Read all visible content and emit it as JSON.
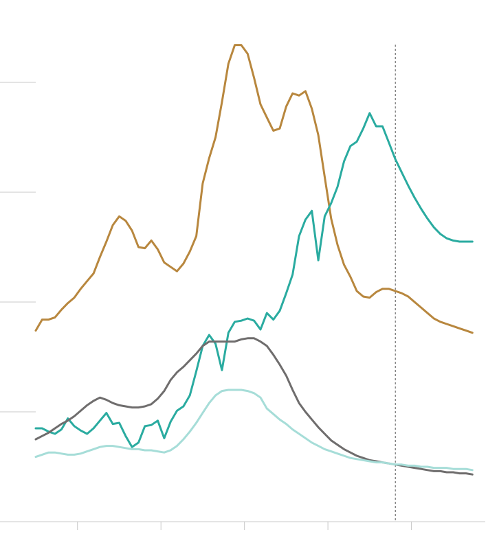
{
  "chart_data": {
    "type": "line",
    "title": "",
    "xlabel": "",
    "ylabel": "",
    "xlim": [
      0,
      140
    ],
    "ylim": [
      0,
      4
    ],
    "y_gridlines": [
      1,
      2,
      3,
      4
    ],
    "x_ticks": [
      13,
      39,
      65,
      91,
      117
    ],
    "reference_line_x": 112,
    "grid": true,
    "series": [
      {
        "color": "#B8873E",
        "x": [
          0,
          2,
          4,
          6,
          8,
          10,
          12,
          14,
          16,
          18,
          20,
          22,
          24,
          26,
          28,
          30,
          32,
          34,
          36,
          38,
          40,
          42,
          44,
          46,
          48,
          50,
          52,
          54,
          56,
          58,
          60,
          62,
          64,
          66,
          68,
          70,
          72,
          74,
          76,
          78,
          80,
          82,
          84,
          86,
          88,
          90,
          92,
          94,
          96,
          98,
          100,
          102,
          104,
          106,
          108,
          110,
          112,
          114,
          116,
          118,
          120,
          122,
          124,
          126,
          128,
          130,
          132,
          134,
          136
        ],
        "values": [
          1.74,
          1.84,
          1.84,
          1.86,
          1.93,
          1.99,
          2.04,
          2.12,
          2.19,
          2.26,
          2.41,
          2.55,
          2.7,
          2.78,
          2.74,
          2.65,
          2.5,
          2.49,
          2.56,
          2.48,
          2.36,
          2.32,
          2.28,
          2.35,
          2.46,
          2.6,
          3.08,
          3.31,
          3.5,
          3.82,
          4.17,
          4.34,
          4.34,
          4.26,
          4.04,
          3.8,
          3.68,
          3.56,
          3.58,
          3.78,
          3.9,
          3.88,
          3.92,
          3.76,
          3.52,
          3.14,
          2.76,
          2.52,
          2.34,
          2.23,
          2.1,
          2.05,
          2.04,
          2.09,
          2.12,
          2.12,
          2.1,
          2.08,
          2.05,
          2.0,
          1.95,
          1.9,
          1.85,
          1.82,
          1.8,
          1.78,
          1.76,
          1.74,
          1.72
        ]
      },
      {
        "color": "#2AABA0",
        "x": [
          0,
          2,
          4,
          6,
          8,
          10,
          12,
          14,
          16,
          18,
          20,
          22,
          24,
          26,
          28,
          30,
          32,
          34,
          36,
          38,
          40,
          42,
          44,
          46,
          48,
          50,
          52,
          54,
          56,
          58,
          60,
          62,
          64,
          66,
          68,
          70,
          72,
          74,
          76,
          78,
          80,
          82,
          84,
          86,
          88,
          90,
          92,
          94,
          96,
          98,
          100,
          102,
          104,
          106,
          108,
          110,
          112,
          114,
          116,
          118,
          120,
          122,
          124,
          126,
          128,
          130,
          132,
          134,
          136
        ],
        "values": [
          0.85,
          0.85,
          0.82,
          0.8,
          0.84,
          0.94,
          0.87,
          0.83,
          0.8,
          0.85,
          0.92,
          0.99,
          0.89,
          0.9,
          0.78,
          0.68,
          0.72,
          0.87,
          0.88,
          0.92,
          0.76,
          0.91,
          1.01,
          1.05,
          1.15,
          1.37,
          1.6,
          1.7,
          1.62,
          1.38,
          1.72,
          1.82,
          1.83,
          1.85,
          1.83,
          1.75,
          1.9,
          1.84,
          1.92,
          2.08,
          2.25,
          2.6,
          2.75,
          2.83,
          2.38,
          2.78,
          2.9,
          3.05,
          3.28,
          3.42,
          3.46,
          3.58,
          3.72,
          3.6,
          3.6,
          3.45,
          3.3,
          3.18,
          3.06,
          2.95,
          2.85,
          2.76,
          2.68,
          2.62,
          2.58,
          2.56,
          2.55,
          2.55,
          2.55
        ]
      },
      {
        "color": "#6F6D6D",
        "x": [
          0,
          2,
          4,
          6,
          8,
          10,
          12,
          14,
          16,
          18,
          20,
          22,
          24,
          26,
          28,
          30,
          32,
          34,
          36,
          38,
          40,
          42,
          44,
          46,
          48,
          50,
          52,
          54,
          56,
          58,
          60,
          62,
          64,
          66,
          68,
          70,
          72,
          74,
          76,
          78,
          80,
          82,
          84,
          86,
          88,
          90,
          92,
          94,
          96,
          98,
          100,
          102,
          104,
          106,
          108,
          110,
          112,
          114,
          116,
          118,
          120,
          122,
          124,
          126,
          128,
          130,
          132,
          134,
          136
        ],
        "values": [
          0.75,
          0.78,
          0.81,
          0.85,
          0.89,
          0.92,
          0.96,
          1.01,
          1.06,
          1.1,
          1.13,
          1.11,
          1.08,
          1.06,
          1.05,
          1.04,
          1.04,
          1.05,
          1.07,
          1.12,
          1.19,
          1.29,
          1.36,
          1.41,
          1.47,
          1.53,
          1.6,
          1.64,
          1.64,
          1.64,
          1.64,
          1.64,
          1.66,
          1.67,
          1.67,
          1.64,
          1.6,
          1.52,
          1.43,
          1.33,
          1.2,
          1.08,
          1.0,
          0.93,
          0.86,
          0.8,
          0.74,
          0.7,
          0.66,
          0.63,
          0.6,
          0.58,
          0.56,
          0.55,
          0.54,
          0.53,
          0.52,
          0.51,
          0.5,
          0.49,
          0.48,
          0.47,
          0.46,
          0.46,
          0.45,
          0.45,
          0.44,
          0.44,
          0.43
        ]
      },
      {
        "color": "#A6DDD8",
        "x": [
          0,
          2,
          4,
          6,
          8,
          10,
          12,
          14,
          16,
          18,
          20,
          22,
          24,
          26,
          28,
          30,
          32,
          34,
          36,
          38,
          40,
          42,
          44,
          46,
          48,
          50,
          52,
          54,
          56,
          58,
          60,
          62,
          64,
          66,
          68,
          70,
          72,
          74,
          76,
          78,
          80,
          82,
          84,
          86,
          88,
          90,
          92,
          94,
          96,
          98,
          100,
          102,
          104,
          106,
          108,
          110,
          112,
          114,
          116,
          118,
          120,
          122,
          124,
          126,
          128,
          130,
          132,
          134,
          136
        ],
        "values": [
          0.59,
          0.61,
          0.63,
          0.63,
          0.62,
          0.61,
          0.61,
          0.62,
          0.64,
          0.66,
          0.68,
          0.69,
          0.69,
          0.68,
          0.67,
          0.66,
          0.66,
          0.65,
          0.65,
          0.64,
          0.63,
          0.65,
          0.69,
          0.75,
          0.82,
          0.9,
          0.99,
          1.08,
          1.15,
          1.19,
          1.2,
          1.2,
          1.2,
          1.19,
          1.17,
          1.13,
          1.03,
          0.98,
          0.93,
          0.89,
          0.84,
          0.8,
          0.76,
          0.72,
          0.69,
          0.66,
          0.64,
          0.62,
          0.6,
          0.58,
          0.57,
          0.56,
          0.55,
          0.54,
          0.54,
          0.53,
          0.52,
          0.52,
          0.51,
          0.51,
          0.5,
          0.5,
          0.49,
          0.49,
          0.49,
          0.48,
          0.48,
          0.48,
          0.47
        ]
      }
    ]
  }
}
